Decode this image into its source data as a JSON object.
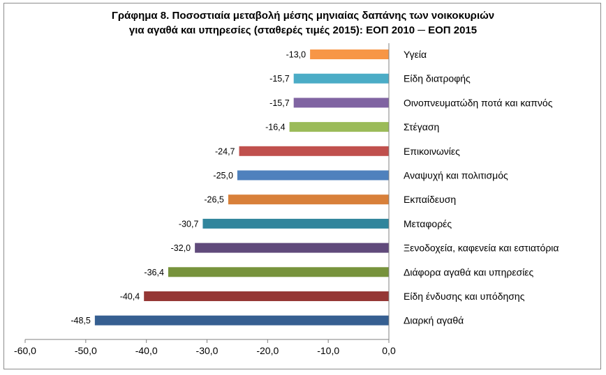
{
  "chart_data": {
    "type": "bar",
    "orientation": "horizontal",
    "title": "Γράφημα 8.  Ποσοστιαία μεταβολή μέσης μηνιαίας δαπάνης των νοικοκυριών",
    "subtitle": "για αγαθά και υπηρεσίες (σταθερές τιμές 2015): ΕΟΠ 2010 ─ ΕΟΠ 2015",
    "categories": [
      "Υγεία",
      "Είδη διατροφής",
      "Οινοπνευματώδη ποτά και καπνός",
      "Στέγαση",
      "Επικοινωνίες",
      "Αναψυχή και πολιτισμός",
      "Εκπαίδευση",
      "Μεταφορές",
      "Ξενοδοχεία, καφενεία και εστιατόρια",
      "Διάφορα αγαθά και υπηρεσίες",
      "Είδη ένδυσης και υπόδησης",
      "Διαρκή αγαθά"
    ],
    "values": [
      -13.0,
      -15.7,
      -15.7,
      -16.4,
      -24.7,
      -25.0,
      -26.5,
      -30.7,
      -32.0,
      -36.4,
      -40.4,
      -48.5
    ],
    "value_labels": [
      "-13,0",
      "-15,7",
      "-15,7",
      "-16,4",
      "-24,7",
      "-25,0",
      "-26,5",
      "-30,7",
      "-32,0",
      "-36,4",
      "-40,4",
      "-48,5"
    ],
    "colors": [
      "#F79646",
      "#4BACC6",
      "#8064A2",
      "#9BBB59",
      "#C0504D",
      "#4F81BD",
      "#D8803A",
      "#31859C",
      "#604A7B",
      "#77933C",
      "#953735",
      "#365F91"
    ],
    "xlim": [
      -60,
      0
    ],
    "xticks": [
      -60,
      -50,
      -40,
      -30,
      -20,
      -10,
      0
    ],
    "xtick_labels": [
      "-60,0",
      "-50,0",
      "-40,0",
      "-30,0",
      "-20,0",
      "-10,0",
      "0,0"
    ],
    "grid": false,
    "legend": "none"
  }
}
